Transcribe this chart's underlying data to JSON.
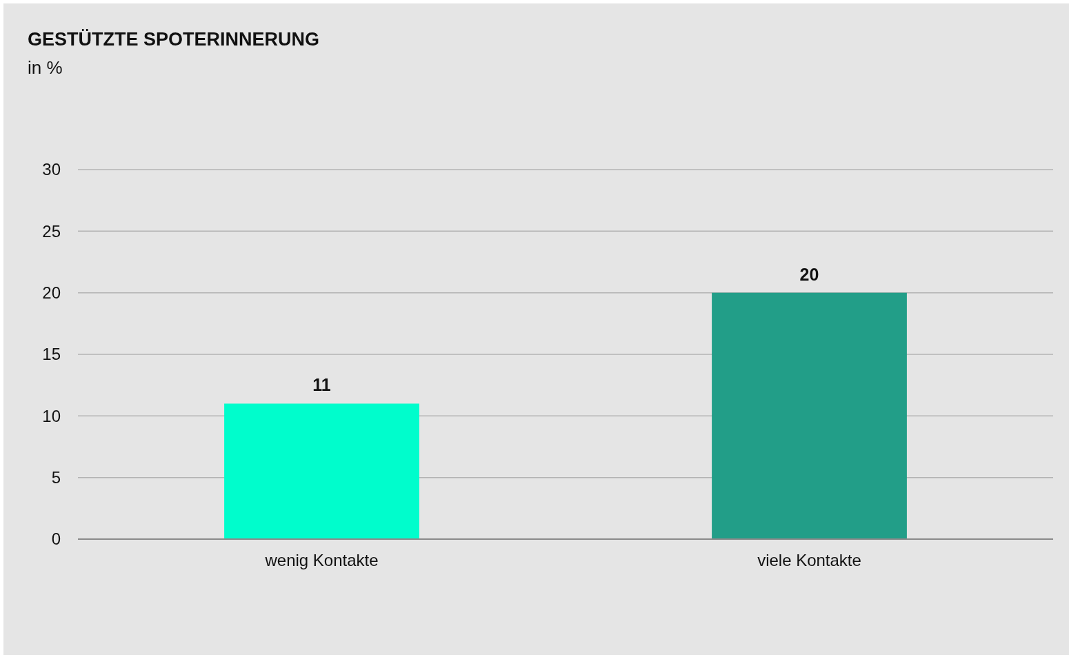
{
  "chart_data": {
    "type": "bar",
    "title": "GESTÜTZTE SPOTERINNERUNG",
    "subtitle": "in %",
    "categories": [
      "wenig Kontakte",
      "viele Kontakte"
    ],
    "values": [
      11,
      20
    ],
    "colors": [
      "#00fdcc",
      "#229e88"
    ],
    "ylim": [
      0,
      30
    ],
    "yticks": [
      0,
      5,
      10,
      15,
      20,
      25,
      30
    ],
    "grid": "y",
    "data_labels": true
  }
}
